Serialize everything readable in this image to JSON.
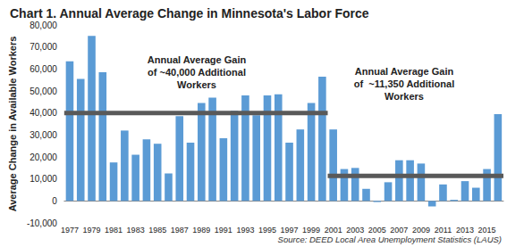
{
  "chart_data": {
    "type": "bar",
    "title": "Chart 1. Annual Average Change in Minnesota's Labor Force",
    "y_label": "Average Change in Available Workers",
    "source": "Source: DEED Local Area Unemployment Statistics (LAUS)",
    "categories": [
      "1977",
      null,
      "1979",
      null,
      "1981",
      null,
      "1983",
      null,
      "1985",
      null,
      "1987",
      null,
      "1989",
      null,
      "1991",
      null,
      "1993",
      null,
      "1995",
      null,
      "1997",
      null,
      "1999",
      null,
      "2001",
      null,
      "2003",
      null,
      "2005",
      null,
      "2007",
      null,
      "2009",
      null,
      "2011",
      null,
      "2013",
      null,
      "2015",
      null
    ],
    "values": [
      63500,
      55500,
      75000,
      58500,
      17500,
      32000,
      21000,
      28000,
      26000,
      12500,
      38500,
      26500,
      44500,
      47000,
      28500,
      41000,
      48000,
      39000,
      48000,
      48500,
      26500,
      32500,
      44500,
      56500,
      32500,
      14500,
      15000,
      5500,
      -500,
      8500,
      18500,
      18500,
      17000,
      -2500,
      7500,
      500,
      9000,
      6000,
      14500,
      39500
    ],
    "color": "#5b9bd5",
    "ylim": [
      -10000,
      80000
    ],
    "yticks": [
      {
        "value": -10000,
        "label": "-10,000"
      },
      0,
      {
        "value": 10000,
        "label": "10,000"
      },
      {
        "value": 20000,
        "label": "20,000"
      },
      {
        "value": 30000,
        "label": "30,000"
      },
      {
        "value": 40000,
        "label": "40,000"
      },
      {
        "value": 50000,
        "label": "50,000"
      },
      {
        "value": 60000,
        "label": "60,000"
      },
      {
        "value": 70000,
        "label": "70,000"
      },
      {
        "value": 80000,
        "label": "80,000"
      }
    ],
    "grid": false,
    "tick_labels": true,
    "reference_lines": [
      {
        "value": 40000,
        "first": 0,
        "last": 23,
        "color": "#595959",
        "annotation": [
          "Annual Average Gain",
          "of ~40,000 Additional",
          "Workers"
        ]
      },
      {
        "value": 11350,
        "first": 24,
        "last": 39,
        "color": "#595959",
        "annotation": [
          "Annual Average Gain",
          "of  ~11,350 Additional",
          "Workers"
        ]
      }
    ]
  }
}
